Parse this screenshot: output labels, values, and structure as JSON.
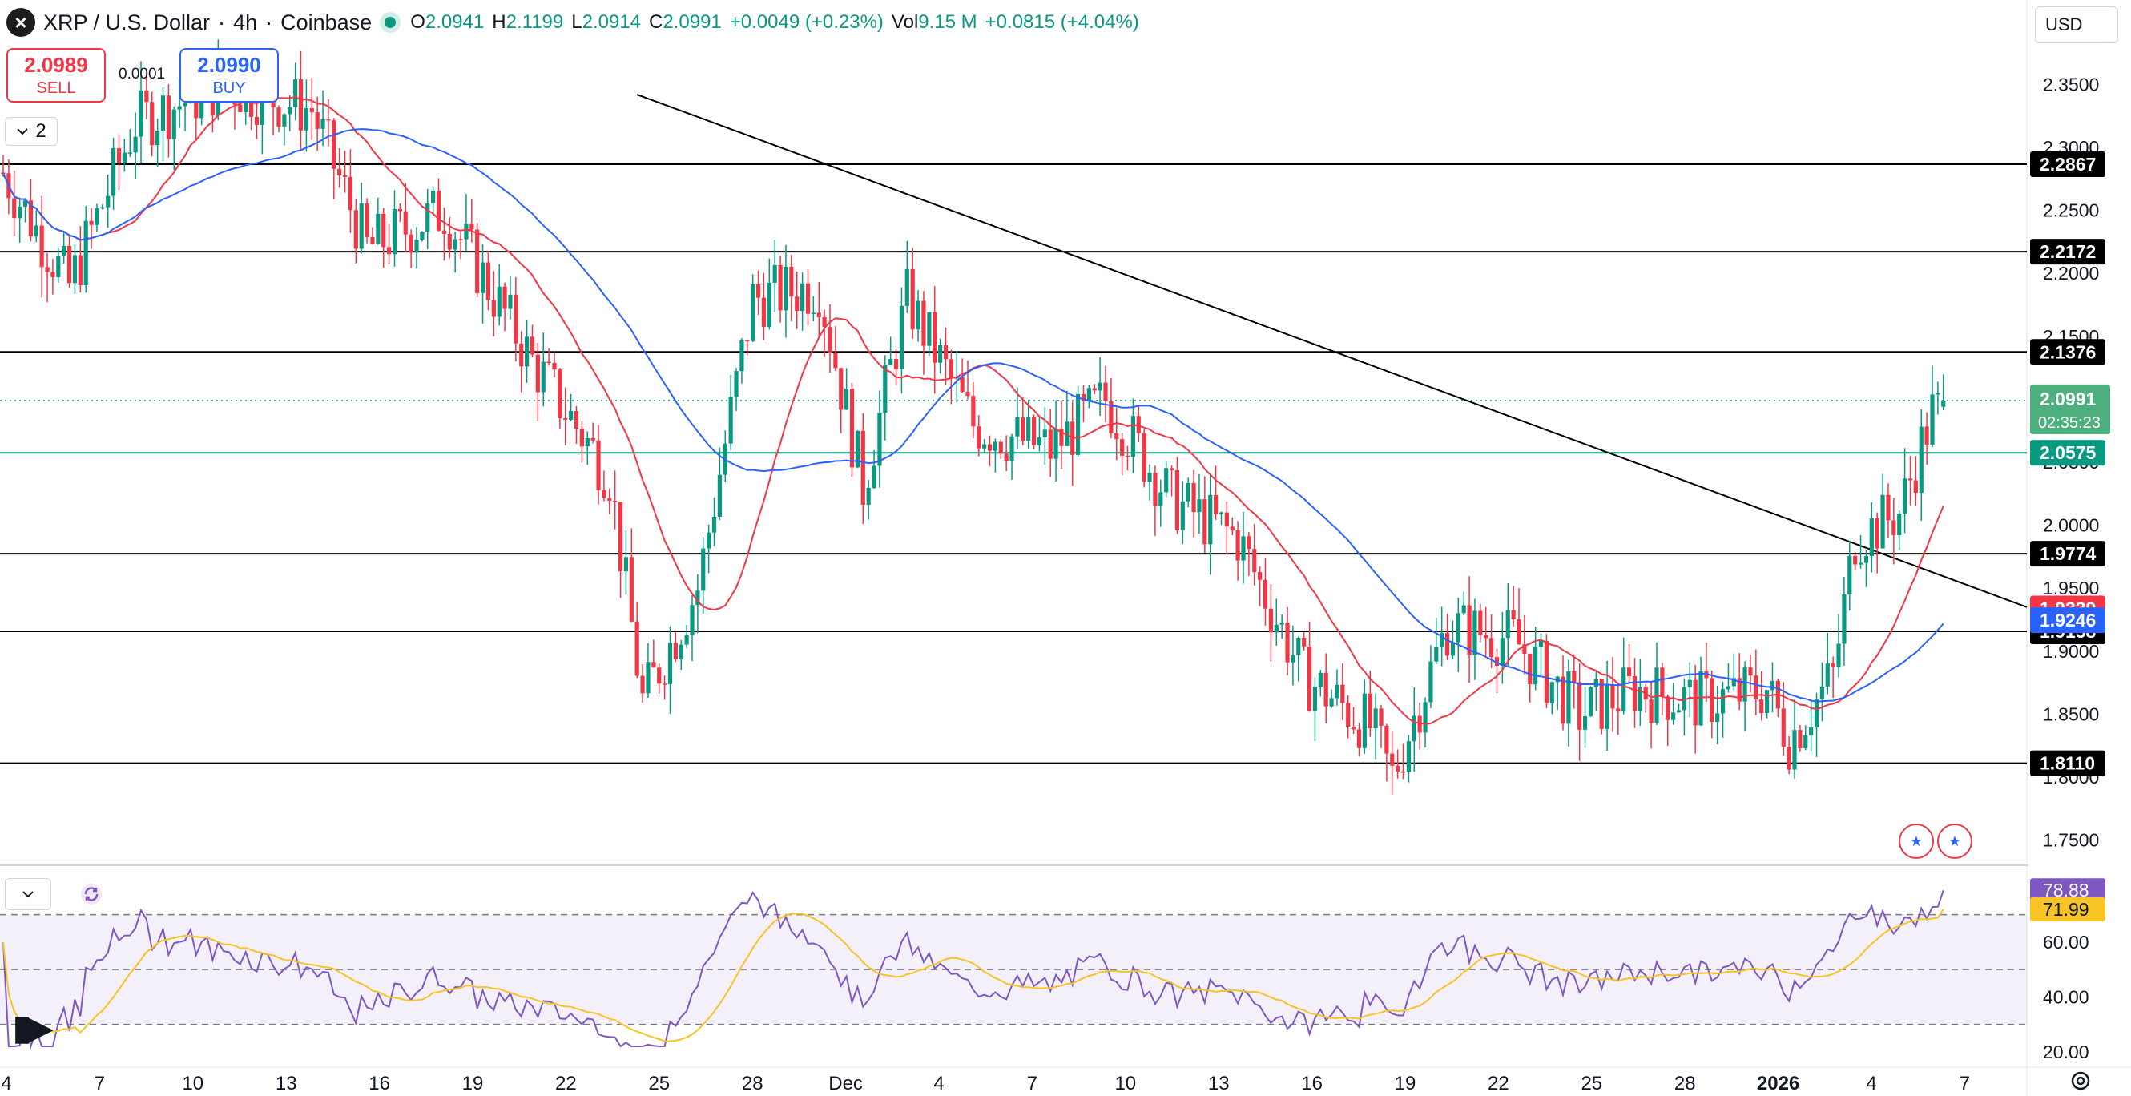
{
  "header": {
    "symbol": "XRP / U.S. Dollar",
    "interval": "4h",
    "exchange": "Coinbase",
    "sep": "·",
    "open_label": "O",
    "open": "2.0941",
    "high_label": "H",
    "high": "2.1199",
    "low_label": "L",
    "low": "2.0914",
    "close_label": "C",
    "close": "2.0991",
    "change": "+0.0049 (+0.23%)",
    "vol_label": "Vol",
    "vol": "9.15 M",
    "vol_change": "+0.0815 (+4.04%)"
  },
  "trade": {
    "sell_price": "2.0989",
    "sell_label": "SELL",
    "buy_price": "2.0990",
    "buy_label": "BUY",
    "spread": "0.0001"
  },
  "collapse_count": "2",
  "currency": "USD",
  "colors": {
    "up": "#089981",
    "down": "#f23645",
    "ma_fast": "#f23645",
    "ma_slow": "#2962ff",
    "rsi": "#7e57c2",
    "rsi_ma": "#f7c325",
    "level": "#000000",
    "support_green": "#089981"
  },
  "icons": {
    "symbol": "x-logo-icon",
    "collapse": "chevron-down-icon",
    "sync": "sync-icon",
    "settings": "gear-icon",
    "logo": "tradingview-logo-icon"
  },
  "chart_data": {
    "type": "candlestick",
    "price_axis": {
      "ticks": [
        2.35,
        2.3,
        2.25,
        2.2,
        2.15,
        2.1,
        2.05,
        2.0,
        1.95,
        1.9,
        1.85,
        1.8,
        1.75
      ],
      "tick_labels": [
        "2.3500",
        "2.3000",
        "2.2500",
        "2.2000",
        "2.1500",
        "2.1000",
        "2.0500",
        "2.0000",
        "1.9500",
        "1.9000",
        "1.8500",
        "1.8000",
        "1.7500"
      ]
    },
    "time_axis": {
      "labels": [
        "4",
        "7",
        "10",
        "13",
        "16",
        "19",
        "22",
        "25",
        "28",
        "Dec",
        "4",
        "7",
        "10",
        "13",
        "16",
        "19",
        "22",
        "25",
        "28",
        "2026",
        "4",
        "7"
      ]
    },
    "horizontal_levels": [
      {
        "value": 2.2867,
        "label": "2.2867",
        "color": "#000000"
      },
      {
        "value": 2.2172,
        "label": "2.2172",
        "color": "#000000"
      },
      {
        "value": 2.1376,
        "label": "2.1376",
        "color": "#000000"
      },
      {
        "value": 2.0575,
        "label": "2.0575",
        "color": "#089981"
      },
      {
        "value": 1.9774,
        "label": "1.9774",
        "color": "#000000"
      },
      {
        "value": 1.9158,
        "label": "1.9158",
        "color": "#000000"
      },
      {
        "value": 1.811,
        "label": "1.8110",
        "color": "#000000"
      }
    ],
    "last_price": {
      "value": 2.0991,
      "label": "2.0991",
      "countdown": "02:35:23"
    },
    "ma_labels": [
      {
        "value": 1.9339,
        "label": "1.9339",
        "color": "#f23645"
      },
      {
        "value": 1.9246,
        "label": "1.9246",
        "color": "#2962ff"
      }
    ],
    "trendline": {
      "from": {
        "t": "Nov 22",
        "price": 2.36
      },
      "to": {
        "t": "Jan 5",
        "price": 1.94
      }
    },
    "close_path": [
      {
        "t": 0,
        "p": 2.28
      },
      {
        "t": 12,
        "p": 2.19
      },
      {
        "t": 24,
        "p": 2.32
      },
      {
        "t": 40,
        "p": 2.35
      },
      {
        "t": 56,
        "p": 2.33
      },
      {
        "t": 66,
        "p": 2.22
      },
      {
        "t": 80,
        "p": 2.25
      },
      {
        "t": 96,
        "p": 2.13
      },
      {
        "t": 110,
        "p": 2.04
      },
      {
        "t": 116,
        "p": 1.86
      },
      {
        "t": 126,
        "p": 1.95
      },
      {
        "t": 136,
        "p": 2.18
      },
      {
        "t": 148,
        "p": 2.19
      },
      {
        "t": 156,
        "p": 2.03
      },
      {
        "t": 164,
        "p": 2.18
      },
      {
        "t": 176,
        "p": 2.08
      },
      {
        "t": 190,
        "p": 2.06
      },
      {
        "t": 200,
        "p": 2.1
      },
      {
        "t": 212,
        "p": 2.02
      },
      {
        "t": 224,
        "p": 1.99
      },
      {
        "t": 236,
        "p": 1.88
      },
      {
        "t": 248,
        "p": 1.84
      },
      {
        "t": 252,
        "p": 1.8
      },
      {
        "t": 262,
        "p": 1.92
      },
      {
        "t": 274,
        "p": 1.91
      },
      {
        "t": 286,
        "p": 1.85
      },
      {
        "t": 296,
        "p": 1.87
      },
      {
        "t": 308,
        "p": 1.86
      },
      {
        "t": 320,
        "p": 1.87
      },
      {
        "t": 324,
        "p": 1.83
      },
      {
        "t": 332,
        "p": 1.88
      },
      {
        "t": 336,
        "p": 1.99
      },
      {
        "t": 344,
        "p": 2.01
      },
      {
        "t": 350,
        "p": 2.09
      }
    ],
    "rsi": {
      "ticks": [
        80,
        60,
        40,
        20
      ],
      "tick_labels": [
        "80.00",
        "60.00",
        "40.00",
        "20.00"
      ],
      "bands": [
        70,
        50,
        30
      ],
      "value": "78.88",
      "ma_value": "71.99"
    }
  }
}
